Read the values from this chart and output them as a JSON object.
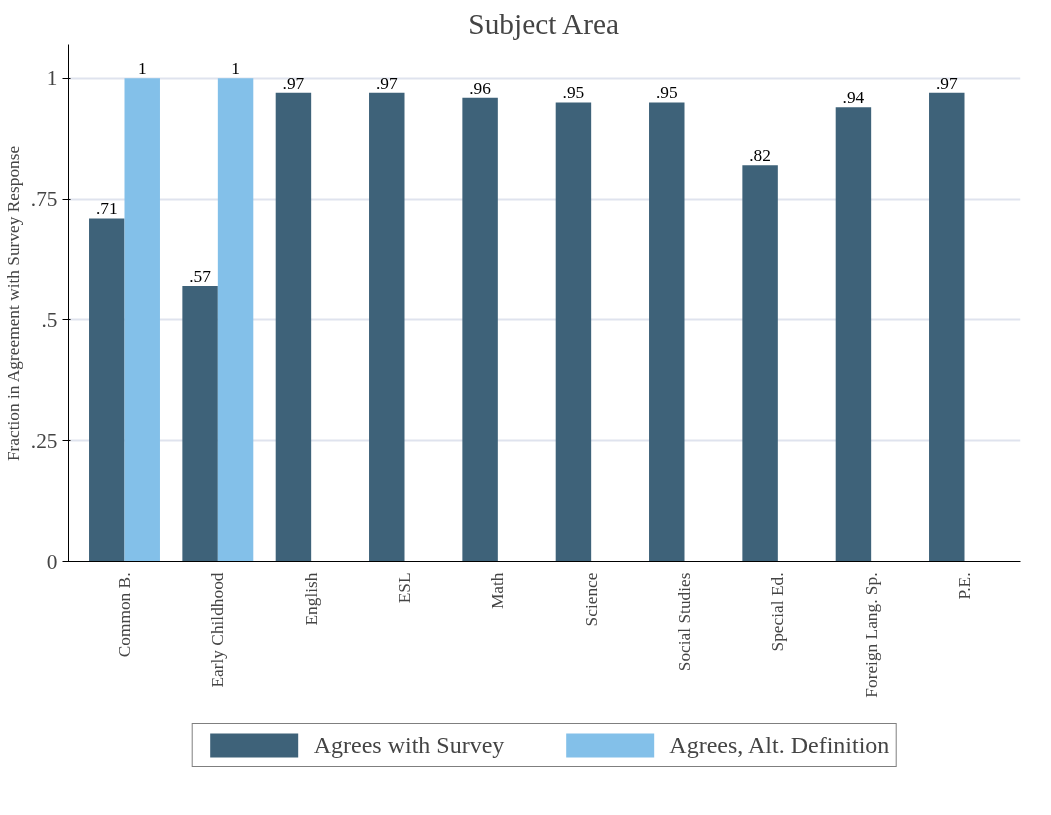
{
  "chart_data": {
    "type": "bar",
    "title": "Subject Area",
    "ylabel": "Fraction in Agreement with Survey Response",
    "categories": [
      "Common B.",
      "Early Childhood",
      "English",
      "ESL",
      "Math",
      "Science",
      "Social Studies",
      "Special Ed.",
      "Foreign Lang. Sp.",
      "P.E."
    ],
    "series": [
      {
        "name": "Agrees with Survey",
        "color": "#3e6279",
        "values": [
          0.71,
          0.57,
          0.97,
          0.97,
          0.96,
          0.95,
          0.95,
          0.82,
          0.94,
          0.97
        ],
        "value_labels": [
          ".71",
          ".57",
          ".97",
          ".97",
          ".96",
          ".95",
          ".95",
          ".82",
          ".94",
          ".97"
        ]
      },
      {
        "name": "Agrees, Alt. Definition",
        "color": "#83c0e9",
        "values": [
          1,
          1,
          null,
          null,
          null,
          null,
          null,
          null,
          null,
          null
        ],
        "value_labels": [
          "1",
          "1",
          null,
          null,
          null,
          null,
          null,
          null,
          null,
          null
        ]
      }
    ],
    "ylim": [
      0,
      1.07
    ],
    "yticks": [
      0,
      {
        "value": 0.25,
        "label": ".25"
      },
      {
        "value": 0.5,
        "label": ".5"
      },
      {
        "value": 0.75,
        "label": ".75"
      },
      1
    ],
    "grid": "y",
    "legend": "bottom"
  }
}
